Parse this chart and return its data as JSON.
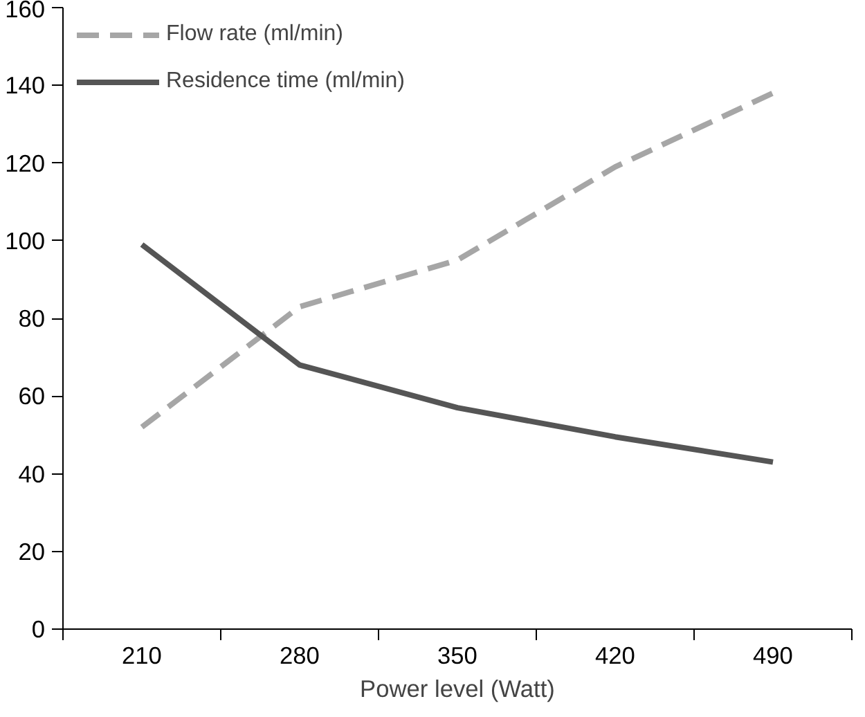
{
  "chart_data": {
    "type": "line",
    "xlabel": "Power level (Watt)",
    "categories": [
      "210",
      "280",
      "350",
      "420",
      "490"
    ],
    "ylim": [
      0,
      160
    ],
    "yticks": [
      0,
      20,
      40,
      60,
      80,
      100,
      120,
      140,
      160
    ],
    "series": [
      {
        "name": "Flow rate (ml/min)",
        "color": "#a6a6a6",
        "line_style": "dashed",
        "values": [
          52,
          83,
          95,
          119,
          138
        ]
      },
      {
        "name": "Residence time (ml/min)",
        "color": "#555555",
        "line_style": "solid",
        "values": [
          99,
          68,
          57,
          49.5,
          43
        ]
      }
    ],
    "legend": "top left",
    "grid": false,
    "marker": "none"
  }
}
